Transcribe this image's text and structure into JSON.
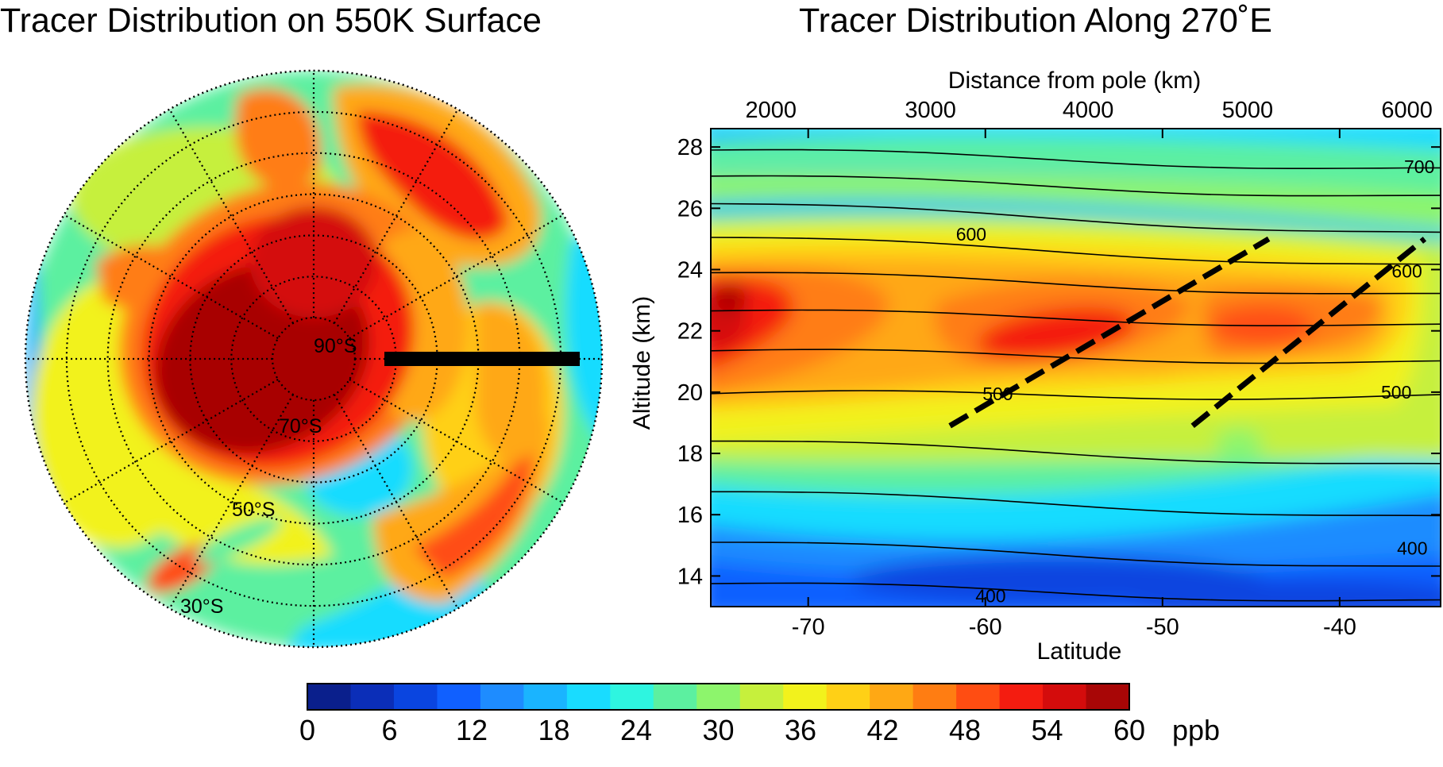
{
  "chart_data": [
    {
      "type": "polar-contour-map",
      "title": "Tracer Distribution on 550K Surface",
      "latitude_circle_labels": [
        "90°S",
        "70°S",
        "50°S",
        "30°S"
      ],
      "latitude_circles_deg": [
        80,
        70,
        60,
        50,
        40,
        30,
        20
      ],
      "outer_latitude_deg": 20,
      "meridian_spacing_deg": 30,
      "grid": "dotted",
      "highlighted_segment": {
        "meridian": "270°E",
        "from_lat": -75,
        "to_lat": -35
      },
      "field_range_ppb": [
        0,
        60
      ]
    },
    {
      "type": "heatmap",
      "title": "Tracer Distribution Along 270˚E",
      "xlabel": "Latitude",
      "ylabel": "Altitude (km)",
      "top_xlabel": "Distance from pole (km)",
      "xlim": [
        -75.5,
        -34.3
      ],
      "ylim": [
        13,
        28.6
      ],
      "x_ticks": [
        -70,
        -60,
        -50,
        -40
      ],
      "y_ticks": [
        14,
        16,
        18,
        20,
        22,
        24,
        26,
        28
      ],
      "top_x_ticks": [
        2000,
        3000,
        4000,
        5000,
        6000
      ],
      "top_x_tick_latitudes": [
        -72.1,
        -63.1,
        -54.2,
        -45.2,
        -36.2
      ],
      "overlay_contours": [
        {
          "y_left": 13.75,
          "y_right": 13.15
        },
        {
          "y_left": 15.1,
          "y_right": 14.25,
          "label": "400"
        },
        {
          "y_left": 16.75,
          "y_right": 15.9
        },
        {
          "y_left": 18.4,
          "y_right": 17.6
        },
        {
          "y_left": 19.95,
          "y_right": 19.85,
          "label": "500"
        },
        {
          "y_left": 21.35,
          "y_right": 20.95
        },
        {
          "y_left": 22.65,
          "y_right": 22.15
        },
        {
          "y_left": 23.9,
          "y_right": 23.15
        },
        {
          "y_left": 25.05,
          "y_right": 24.1,
          "label": "600"
        },
        {
          "y_left": 26.15,
          "y_right": 25.15
        },
        {
          "y_left": 27.05,
          "y_right": 26.35
        },
        {
          "y_left": 27.9,
          "y_right": 27.25,
          "label": "700"
        }
      ],
      "contour_labels": [
        {
          "text": "400",
          "lat": -59.7,
          "alt": 13.35
        },
        {
          "text": "400",
          "lat": -35.9,
          "alt": 14.9
        },
        {
          "text": "500",
          "lat": -59.3,
          "alt": 19.95
        },
        {
          "text": "500",
          "lat": -36.8,
          "alt": 20.0
        },
        {
          "text": "600",
          "lat": -60.8,
          "alt": 25.15
        },
        {
          "text": "600",
          "lat": -36.2,
          "alt": 23.95
        },
        {
          "text": "700",
          "lat": -35.5,
          "alt": 27.35
        }
      ],
      "dashed_lines": [
        {
          "from": [
            -62,
            18.9
          ],
          "to": [
            -44,
            25.0
          ]
        },
        {
          "from": [
            -48.3,
            18.9
          ],
          "to": [
            -35.2,
            25.0
          ]
        }
      ],
      "field_peaks": [
        {
          "lat": -75.5,
          "alt": 21.8,
          "value_ppb": 58
        },
        {
          "lat": -72,
          "alt": 22.7,
          "value_ppb": 54
        },
        {
          "lat": -54,
          "alt": 22.3,
          "value_ppb": 52
        },
        {
          "lat": -42,
          "alt": 22.5,
          "value_ppb": 51
        },
        {
          "lat": -55,
          "alt": 14.5,
          "value_ppb": 6
        },
        {
          "lat": -40,
          "alt": 13.5,
          "value_ppb": 6
        }
      ],
      "value_range_ppb": [
        0,
        60
      ]
    }
  ],
  "colorbar": {
    "unit": "ppb",
    "tick_labels": [
      "0",
      "6",
      "12",
      "18",
      "24",
      "30",
      "36",
      "42",
      "48",
      "54",
      "60"
    ],
    "colors": [
      "#0a1f8c",
      "#0b2eb8",
      "#0a45e0",
      "#1060ff",
      "#1e8cff",
      "#1ab4ff",
      "#19dcff",
      "#2ef5e0",
      "#5cf0a0",
      "#8df56c",
      "#c6f03c",
      "#f2f21c",
      "#ffd016",
      "#ffa814",
      "#ff7d12",
      "#ff4d12",
      "#f41c10",
      "#d40c0c",
      "#a80606"
    ]
  }
}
